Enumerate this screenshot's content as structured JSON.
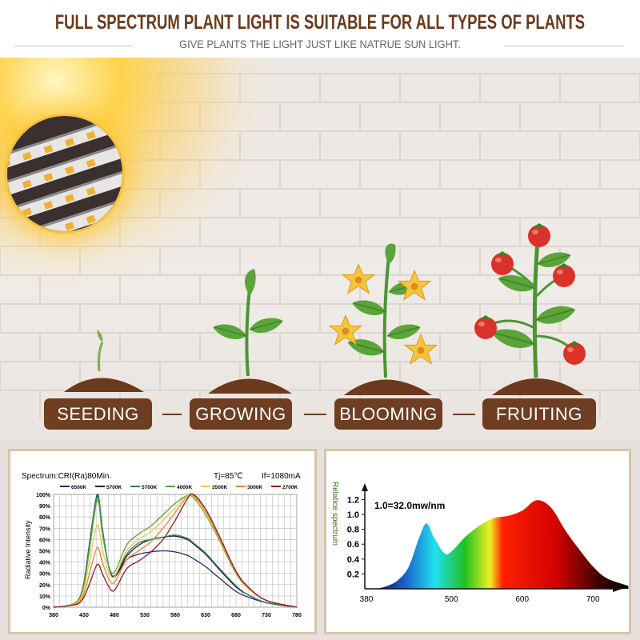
{
  "header": {
    "title": "FULL SPECTRUM PLANT LIGHT IS SUITABLE FOR ALL TYPES OF PLANTS",
    "subtitle": "GIVE PLANTS THE LIGHT JUST LIKE NATRUE SUN LIGHT."
  },
  "stages": [
    "SEEDING",
    "GROWING",
    "BLOOMING",
    "FRUITING"
  ],
  "colors": {
    "brown": "#6e3d22",
    "title": "#6a3a1c",
    "leaf": "#5aa43a",
    "soil": "#6b3a1e",
    "tomato": "#d9322a",
    "flower": "#f5c53a"
  },
  "chart_data": [
    {
      "type": "line",
      "title": "Spectrum:CRI(Ra)80Min.",
      "notes": [
        "Tj=85℃",
        "If=1080mA"
      ],
      "ylabel": "Radiative Intensity",
      "x": [
        380,
        400,
        420,
        430,
        440,
        452,
        460,
        470,
        480,
        500,
        520,
        540,
        560,
        580,
        600,
        610,
        630,
        650,
        680,
        700,
        730,
        780
      ],
      "xticks": [
        "380",
        "430",
        "480",
        "530",
        "580",
        "630",
        "680",
        "730",
        "780"
      ],
      "yticks": [
        "0%",
        "10%",
        "20%",
        "30%",
        "40%",
        "50%",
        "60%",
        "70%",
        "80%",
        "90%",
        "100%"
      ],
      "xlim": [
        380,
        780
      ],
      "ylim": [
        0,
        100
      ],
      "grid": true,
      "legend": "top",
      "series": [
        {
          "name": "6500K",
          "color": "#2a2a6a",
          "values": [
            0,
            1,
            6,
            22,
            60,
            100,
            70,
            38,
            27,
            42,
            47,
            49,
            50,
            49,
            46,
            43,
            36,
            27,
            14,
            9,
            4,
            0
          ]
        },
        {
          "name": "5700K",
          "color": "#222222",
          "values": [
            0,
            1,
            6,
            22,
            60,
            98,
            70,
            38,
            27,
            45,
            55,
            60,
            62,
            63,
            60,
            56,
            47,
            35,
            18,
            11,
            4,
            0
          ]
        },
        {
          "name": "5700K",
          "color": "#2e7a6a",
          "values": [
            0,
            1,
            6,
            22,
            60,
            99,
            70,
            38,
            28,
            47,
            57,
            60,
            62,
            64,
            61,
            57,
            48,
            36,
            19,
            11,
            4,
            0
          ]
        },
        {
          "name": "4000K",
          "color": "#5aa03a",
          "values": [
            0,
            1,
            6,
            20,
            55,
            95,
            66,
            38,
            31,
            55,
            65,
            72,
            82,
            92,
            99,
            97,
            82,
            62,
            30,
            17,
            6,
            0
          ]
        },
        {
          "name": "3500K",
          "color": "#e8c850",
          "values": [
            0,
            1,
            5,
            16,
            44,
            73,
            52,
            32,
            27,
            50,
            60,
            67,
            77,
            88,
            99,
            98,
            83,
            63,
            31,
            17,
            6,
            0
          ]
        },
        {
          "name": "3000K",
          "color": "#e08a30",
          "values": [
            0,
            1,
            4,
            12,
            32,
            53,
            40,
            26,
            22,
            42,
            50,
            58,
            70,
            84,
            98,
            99,
            85,
            64,
            31,
            17,
            6,
            0
          ]
        },
        {
          "name": "2700K",
          "color": "#8a2020",
          "values": [
            0,
            1,
            3,
            9,
            22,
            38,
            30,
            19,
            15,
            34,
            41,
            49,
            60,
            77,
            96,
            100,
            87,
            66,
            32,
            18,
            6,
            0
          ]
        }
      ]
    },
    {
      "type": "area",
      "ylabel": "Relatice spectrum",
      "annotation": "1.0=32.0mw/nm",
      "x": [
        395,
        410,
        425,
        440,
        455,
        465,
        475,
        490,
        500,
        520,
        540,
        560,
        580,
        600,
        620,
        640,
        660,
        675,
        700,
        720,
        750
      ],
      "values": [
        0,
        0.04,
        0.12,
        0.3,
        0.7,
        0.88,
        0.7,
        0.48,
        0.5,
        0.7,
        0.85,
        0.95,
        0.98,
        1.05,
        1.19,
        1.1,
        0.8,
        0.6,
        0.3,
        0.14,
        0.04
      ],
      "xticks": [
        "380",
        "500",
        "600",
        "700"
      ],
      "yticks": [
        "0.2",
        "0.4",
        "0.6",
        "0.8",
        "1.0",
        "1.2"
      ],
      "xlim": [
        380,
        760
      ],
      "ylim": [
        0,
        1.3
      ]
    }
  ]
}
